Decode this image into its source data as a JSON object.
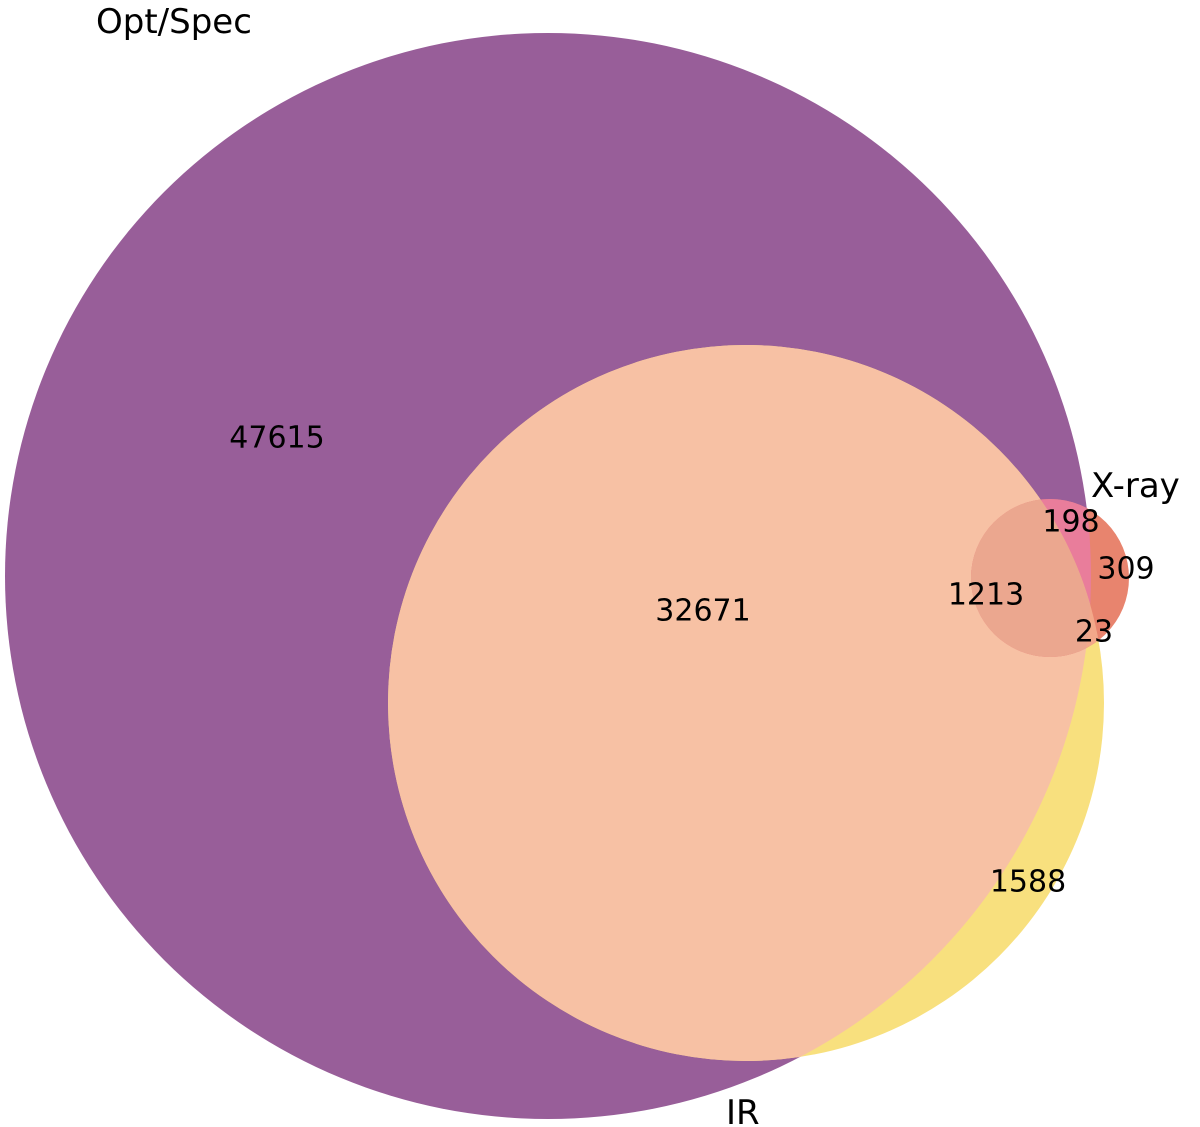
{
  "diagram": {
    "type": "venn3",
    "sets": [
      {
        "id": "opt",
        "name": "Opt/Spec",
        "color": "#985e99"
      },
      {
        "id": "ir",
        "name": "IR",
        "color": "#f8e07e"
      },
      {
        "id": "xray",
        "name": "X-ray",
        "color": "#e8846e"
      }
    ],
    "region_colors": {
      "opt_only": "#985e99",
      "ir_only": "#f8e07e",
      "xray_only": "#e8846e",
      "opt_ir": "#f7c1a4",
      "opt_xray": "#e97d9b",
      "ir_xray": "#f3a88a",
      "opt_ir_xray": "#eba78f"
    },
    "regions": {
      "opt_only": "47615",
      "opt_ir": "32671",
      "opt_ir_xray": "1213",
      "opt_xray": "198",
      "xray_only": "309",
      "ir_xray": "23",
      "ir_only": "1588"
    }
  }
}
